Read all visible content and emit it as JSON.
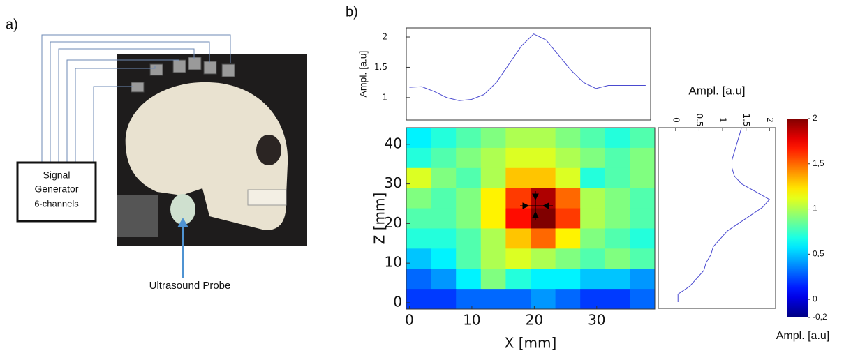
{
  "panel_a": {
    "label": "a)",
    "generator": [
      "Signal",
      "Generator",
      "6-channels"
    ],
    "probe_label": "Ultrasound Probe"
  },
  "panel_b": {
    "label": "b)"
  },
  "chart_data": [
    {
      "type": "line",
      "ylabel": "Ampl. [a.u]",
      "color": "#4a4ad0",
      "x": [
        0,
        2,
        4,
        6,
        8,
        10,
        12,
        14,
        16,
        18,
        20,
        22,
        24,
        26,
        28,
        30,
        32,
        34,
        36,
        38
      ],
      "values": [
        1.17,
        1.18,
        1.1,
        1.0,
        0.95,
        0.97,
        1.05,
        1.25,
        1.55,
        1.85,
        2.05,
        1.95,
        1.7,
        1.45,
        1.25,
        1.15,
        1.2,
        1.2,
        1.2,
        1.2
      ],
      "xlim": [
        -0.5,
        38.8
      ],
      "ylim": [
        0.63,
        2.15
      ],
      "yticks": [
        1,
        1.5,
        2
      ]
    },
    {
      "type": "heatmap",
      "xlabel": "X [mm]",
      "ylabel": "Z [mm]",
      "xlim": [
        -0.5,
        39.3
      ],
      "ylim": [
        -1.6,
        44.2
      ],
      "xticks": [
        0,
        10,
        20,
        30
      ],
      "yticks": [
        0,
        10,
        20,
        30,
        40
      ],
      "values": [
        [
          0.6,
          0.7,
          0.8,
          0.9,
          1.0,
          1.0,
          0.9,
          0.8,
          0.7,
          0.8
        ],
        [
          0.7,
          0.8,
          0.9,
          1.0,
          1.1,
          1.1,
          1.0,
          0.9,
          0.8,
          0.9
        ],
        [
          1.1,
          0.9,
          0.8,
          1.0,
          1.3,
          1.3,
          1.1,
          0.7,
          0.8,
          0.9
        ],
        [
          0.9,
          0.8,
          0.9,
          1.2,
          1.6,
          1.9,
          1.5,
          1.0,
          0.9,
          0.8
        ],
        [
          0.8,
          0.8,
          0.9,
          1.2,
          1.7,
          2.0,
          1.6,
          1.0,
          0.9,
          0.8
        ],
        [
          0.7,
          0.7,
          0.8,
          1.0,
          1.3,
          1.5,
          1.2,
          0.9,
          0.8,
          0.7
        ],
        [
          0.5,
          0.6,
          0.8,
          1.0,
          1.1,
          1.0,
          0.9,
          0.8,
          0.9,
          0.8
        ],
        [
          0.3,
          0.4,
          0.6,
          0.9,
          0.7,
          0.6,
          0.6,
          0.5,
          0.5,
          0.4
        ],
        [
          0.2,
          0.2,
          0.3,
          0.3,
          0.3,
          0.4,
          0.3,
          0.2,
          0.2,
          0.3
        ]
      ],
      "colorbar": {
        "label": "Ampl. [a.u]",
        "lim": [
          -0.2,
          2
        ],
        "ticks": [
          {
            "value": -0.2,
            "label": "-0,2"
          },
          0,
          {
            "value": 0.5,
            "label": "0,5"
          },
          1,
          {
            "value": 1.5,
            "label": "1,5"
          },
          2
        ]
      }
    },
    {
      "type": "line",
      "xlabel": "Ampl. [a.u]",
      "color": "#4a4ad0",
      "z": [
        0,
        2,
        4,
        6,
        8,
        10,
        12,
        14,
        16,
        18,
        20,
        22,
        24,
        26,
        28,
        30,
        32,
        34,
        36,
        38,
        40,
        42,
        44
      ],
      "values": [
        0.05,
        0.05,
        0.3,
        0.45,
        0.6,
        0.65,
        0.75,
        0.8,
        0.95,
        1.1,
        1.35,
        1.6,
        1.85,
        2.0,
        1.7,
        1.4,
        1.25,
        1.2,
        1.2,
        1.25,
        1.3,
        1.35,
        1.4
      ],
      "xlim": [
        -0.37,
        2.13
      ],
      "ylim": [
        -1.6,
        44.2
      ],
      "xticks": [
        0,
        0.5,
        1,
        1.5,
        2
      ]
    }
  ]
}
